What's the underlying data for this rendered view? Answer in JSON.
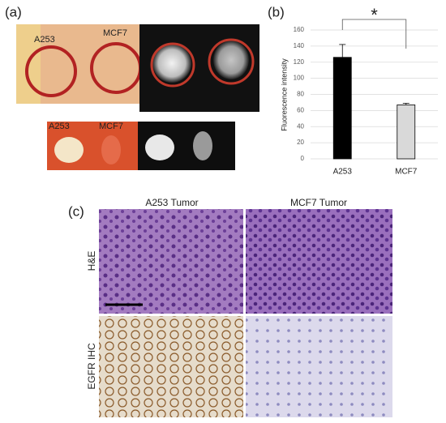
{
  "panel_labels": [
    "(a)",
    "(b)",
    "(c)"
  ],
  "panel_a": {
    "top_labels": [
      "A253",
      "MCF7"
    ],
    "bottom_labels": [
      "A253",
      "MCF7"
    ]
  },
  "chart_data": {
    "type": "bar",
    "ylabel": "Fluorescence intensity",
    "categories": [
      "A253",
      "MCF7"
    ],
    "values": [
      126,
      67
    ],
    "errors": [
      16,
      2
    ],
    "colors": [
      "#000000",
      "#d9d9d9"
    ],
    "ylim": [
      0,
      160
    ],
    "yticks": [
      0,
      20,
      40,
      60,
      80,
      100,
      120,
      140,
      160
    ],
    "grid": true,
    "annotation": "*"
  },
  "panel_c": {
    "columns": [
      "A253 Tumor",
      "MCF7 Tumor"
    ],
    "rows": [
      "H&E",
      "EGFR IHC"
    ]
  }
}
